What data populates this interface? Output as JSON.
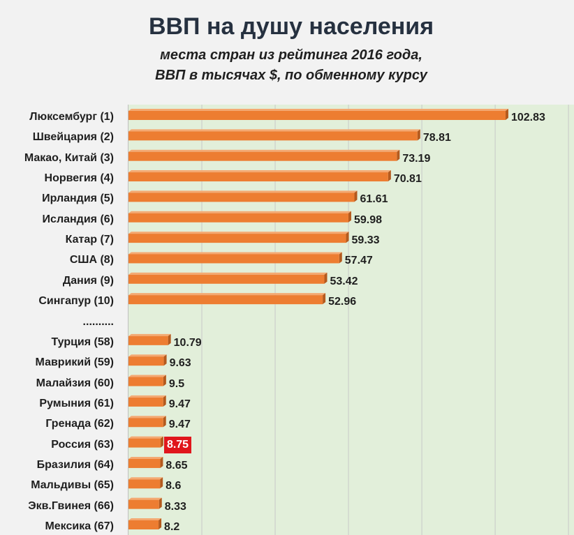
{
  "colors": {
    "background": "#f2f2f2",
    "plot_background": "#e2efda",
    "gridline": "#c8c8c8",
    "bar": "#ed7d31",
    "bar_top": "#f4a972",
    "bar_side": "#b45a1e",
    "text": "#1f1f1f",
    "title": "#263140",
    "highlight_bg": "#e0161c",
    "highlight_text": "#ffffff"
  },
  "chart_data": {
    "type": "bar",
    "title": "ВВП на душу населения",
    "subtitle_lines": [
      "места стран из рейтинга 2016 года,",
      "ВВП в тысячах $, по обменному курсу"
    ],
    "xlabel": "",
    "ylabel": "",
    "categories": [
      "Люксембург (1)",
      "Швейцария (2)",
      "Макао, Китай (3)",
      "Норвегия (4)",
      "Ирландия (5)",
      "Исландия (6)",
      "Катар (7)",
      "США (8)",
      "Дания (9)",
      "Сингапур (10)",
      "..........",
      "Турция (58)",
      "Маврикий (59)",
      "Малайзия (60)",
      "Румыния (61)",
      "Гренада (62)",
      "Россия (63)",
      "Бразилия (64)",
      "Мальдивы (65)",
      "Экв.Гвинея (66)",
      "Мексика (67)"
    ],
    "values": [
      102.83,
      78.81,
      73.19,
      70.81,
      61.61,
      59.98,
      59.33,
      57.47,
      53.42,
      52.96,
      null,
      10.79,
      9.63,
      9.5,
      9.47,
      9.47,
      8.75,
      8.65,
      8.6,
      8.33,
      8.2
    ],
    "highlight_index": 16,
    "xlim": [
      0,
      121.5
    ],
    "grid": true,
    "grid_step": 20
  }
}
